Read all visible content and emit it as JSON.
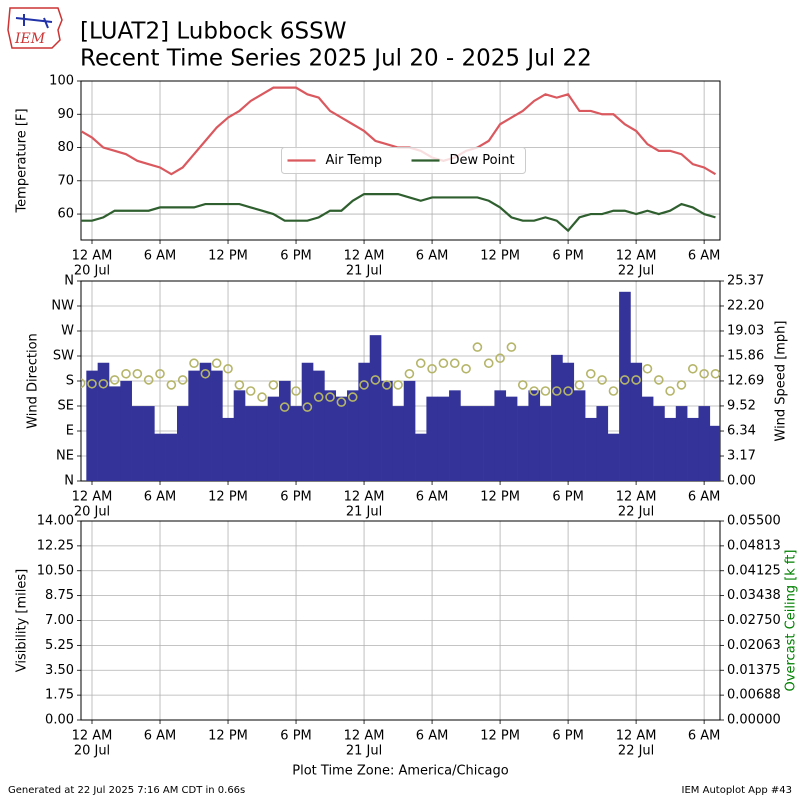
{
  "header": {
    "logo": "IEM",
    "title": "[LUAT2] Lubbock 6SSW",
    "subtitle": "Recent Time Series 2025 Jul 20 - 2025 Jul 22"
  },
  "footer": {
    "left": "Generated at 22 Jul 2025 7:16 AM CDT in 0.66s",
    "right": "IEM Autoplot App #43"
  },
  "chart_data": [
    {
      "type": "line",
      "ylabel": "Temperature [F]",
      "ylim": [
        52.2,
        100
      ],
      "yticks": [
        60,
        70,
        80,
        90,
        100
      ],
      "xlim": [
        -0.97,
        55.4
      ],
      "grid": true,
      "legend": "center",
      "xticks": [
        {
          "value": 0,
          "label": "12 AM"
        },
        {
          "value": 6,
          "label": "6 AM"
        },
        {
          "value": 12,
          "label": "12 PM"
        },
        {
          "value": 18,
          "label": "6 PM"
        },
        {
          "value": 24,
          "label": "12 AM"
        },
        {
          "value": 30,
          "label": "6 AM"
        },
        {
          "value": 36,
          "label": "12 PM"
        },
        {
          "value": 42,
          "label": "6 PM"
        },
        {
          "value": 48,
          "label": "12 AM"
        },
        {
          "value": 54,
          "label": "6 AM"
        }
      ],
      "xdates": [
        {
          "value": 0,
          "label": "20 Jul"
        },
        {
          "value": 24,
          "label": "21 Jul"
        },
        {
          "value": 48,
          "label": "22 Jul"
        }
      ],
      "series": [
        {
          "name": "Air Temp",
          "color": "#d9595f",
          "x": [
            -1,
            0,
            1,
            2,
            3,
            4,
            5,
            6,
            7,
            8,
            9,
            10,
            11,
            12,
            13,
            14,
            15,
            16,
            17,
            18,
            19,
            20,
            21,
            22,
            23,
            24,
            25,
            26,
            27,
            28,
            29,
            30,
            31,
            32,
            33,
            34,
            35,
            36,
            37,
            38,
            39,
            40,
            41,
            42,
            43,
            44,
            45,
            46,
            47,
            48,
            49,
            50,
            51,
            52,
            53,
            54,
            55
          ],
          "values": [
            85,
            83,
            80,
            79,
            78,
            76,
            75,
            74,
            72,
            74,
            78,
            82,
            86,
            89,
            91,
            94,
            96,
            98,
            98,
            98,
            96,
            95,
            91,
            89,
            87,
            85,
            82,
            81,
            80,
            80,
            79,
            77,
            76,
            77,
            79,
            80,
            82,
            87,
            89,
            91,
            94,
            96,
            95,
            96,
            91,
            91,
            90,
            90,
            87,
            85,
            81,
            79,
            79,
            78,
            75,
            74,
            72
          ]
        },
        {
          "name": "Dew Point",
          "color": "#2f5f2f",
          "x": [
            -1,
            0,
            1,
            2,
            3,
            4,
            5,
            6,
            7,
            8,
            9,
            10,
            11,
            12,
            13,
            14,
            15,
            16,
            17,
            18,
            19,
            20,
            21,
            22,
            23,
            24,
            25,
            26,
            27,
            28,
            29,
            30,
            31,
            32,
            33,
            34,
            35,
            36,
            37,
            38,
            39,
            40,
            41,
            42,
            43,
            44,
            45,
            46,
            47,
            48,
            49,
            50,
            51,
            52,
            53,
            54,
            55
          ],
          "values": [
            58,
            58,
            59,
            61,
            61,
            61,
            61,
            62,
            62,
            62,
            62,
            63,
            63,
            63,
            63,
            62,
            61,
            60,
            58,
            58,
            58,
            59,
            61,
            61,
            64,
            66,
            66,
            66,
            66,
            65,
            64,
            65,
            65,
            65,
            65,
            65,
            64,
            62,
            59,
            58,
            58,
            59,
            58,
            55,
            59,
            60,
            60,
            61,
            61,
            60,
            61,
            60,
            61,
            63,
            62,
            60,
            59
          ]
        }
      ]
    },
    {
      "type": "bar",
      "ylabel": "Wind Direction",
      "y2label": "Wind Speed [mph]",
      "ylim": [
        0,
        360
      ],
      "y2lim": [
        0,
        25.37
      ],
      "xlim": [
        -0.97,
        55.4
      ],
      "grid": true,
      "yticks": [
        {
          "value": 0,
          "label": "N"
        },
        {
          "value": 45,
          "label": "NE"
        },
        {
          "value": 90,
          "label": "E"
        },
        {
          "value": 135,
          "label": "SE"
        },
        {
          "value": 180,
          "label": "S"
        },
        {
          "value": 225,
          "label": "SW"
        },
        {
          "value": 270,
          "label": "W"
        },
        {
          "value": 315,
          "label": "NW"
        },
        {
          "value": 360,
          "label": "N"
        }
      ],
      "y2ticks": [
        {
          "value": 0,
          "label": "0.00"
        },
        3.17,
        6.34,
        9.52,
        12.69,
        15.86,
        19.03,
        {
          "value": 22.2,
          "label": "22.20"
        },
        25.37
      ],
      "xticks": [
        {
          "value": 0,
          "label": "12 AM"
        },
        {
          "value": 6,
          "label": "6 AM"
        },
        {
          "value": 12,
          "label": "12 PM"
        },
        {
          "value": 18,
          "label": "6 PM"
        },
        {
          "value": 24,
          "label": "12 AM"
        },
        {
          "value": 30,
          "label": "6 AM"
        },
        {
          "value": 36,
          "label": "12 PM"
        },
        {
          "value": 42,
          "label": "6 PM"
        },
        {
          "value": 48,
          "label": "12 AM"
        },
        {
          "value": 54,
          "label": "6 AM"
        }
      ],
      "xdates": [
        {
          "value": 0,
          "label": "20 Jul"
        },
        {
          "value": 24,
          "label": "21 Jul"
        },
        {
          "value": 48,
          "label": "22 Jul"
        }
      ],
      "series": [
        {
          "type": "bar",
          "axis": "y2",
          "color": "#333399",
          "x": [
            0,
            1,
            2,
            3,
            4,
            5,
            6,
            7,
            8,
            9,
            10,
            11,
            12,
            13,
            14,
            15,
            16,
            17,
            18,
            19,
            20,
            21,
            22,
            23,
            24,
            25,
            26,
            27,
            28,
            29,
            30,
            31,
            32,
            33,
            34,
            35,
            36,
            37,
            38,
            39,
            40,
            41,
            42,
            43,
            44,
            45,
            46,
            47,
            48,
            49,
            50,
            51,
            52,
            53,
            54,
            55
          ],
          "values": [
            14,
            15,
            12,
            12.7,
            9.5,
            9.5,
            6,
            6,
            9.5,
            14,
            15,
            14,
            8,
            11.5,
            9.5,
            9.5,
            10.7,
            12.7,
            9.5,
            15,
            14,
            11.5,
            10.7,
            11.5,
            15,
            18.5,
            12.7,
            9.5,
            12.7,
            6,
            10.7,
            10.7,
            11.5,
            9.5,
            9.5,
            9.5,
            11.5,
            10.7,
            9.5,
            11.5,
            9.5,
            16,
            15,
            11.5,
            8,
            9.5,
            6,
            24,
            15,
            10.7,
            9.5,
            8,
            9.5,
            8,
            9.5,
            7
          ]
        },
        {
          "type": "scatter",
          "color": "#b5b56a",
          "x": [
            -1,
            0,
            1,
            2,
            3,
            4,
            5,
            6,
            7,
            8,
            9,
            10,
            11,
            12,
            13,
            14,
            15,
            16,
            17,
            18,
            19,
            20,
            21,
            22,
            23,
            24,
            25,
            26,
            27,
            28,
            29,
            30,
            31,
            32,
            33,
            34,
            35,
            36,
            37,
            38,
            39,
            40,
            41,
            42,
            43,
            44,
            45,
            46,
            47,
            48,
            49,
            50,
            51,
            52,
            53,
            54,
            55
          ],
          "values": [
            176,
            175,
            175,
            182,
            193,
            193,
            182,
            193,
            173,
            182,
            212,
            193,
            212,
            202,
            173,
            162,
            151,
            173,
            133,
            162,
            133,
            151,
            151,
            142,
            151,
            173,
            182,
            173,
            173,
            193,
            212,
            202,
            212,
            212,
            202,
            241,
            212,
            221,
            241,
            173,
            162,
            162,
            162,
            162,
            173,
            193,
            182,
            162,
            182,
            182,
            202,
            182,
            162,
            173,
            202,
            193,
            193
          ]
        }
      ]
    },
    {
      "type": "line",
      "ylabel": "Visibility [miles]",
      "y2label": "Overcast Ceiling [k ft]",
      "y2color": "#008000",
      "xlabel": "Plot Time Zone: America/Chicago",
      "ylim": [
        0,
        14
      ],
      "y2lim": [
        0,
        0.055
      ],
      "xlim": [
        -0.97,
        55.4
      ],
      "grid": true,
      "yticks": [
        {
          "value": 0,
          "label": "0.00"
        },
        1.75,
        {
          "value": 3.5,
          "label": "3.50"
        },
        5.25,
        {
          "value": 7,
          "label": "7.00"
        },
        8.75,
        {
          "value": 10.5,
          "label": "10.50"
        },
        12.25,
        {
          "value": 14,
          "label": "14.00"
        }
      ],
      "y2ticks": [
        {
          "value": 0,
          "label": "0.00000"
        },
        {
          "value": 0.006875,
          "label": "0.00688"
        },
        0.01375,
        {
          "value": 0.020625,
          "label": "0.02063"
        },
        {
          "value": 0.0275,
          "label": "0.02750"
        },
        {
          "value": 0.034375,
          "label": "0.03438"
        },
        0.04125,
        {
          "value": 0.048125,
          "label": "0.04813"
        },
        {
          "value": 0.055,
          "label": "0.05500"
        }
      ],
      "xticks": [
        {
          "value": 0,
          "label": "12 AM"
        },
        {
          "value": 6,
          "label": "6 AM"
        },
        {
          "value": 12,
          "label": "12 PM"
        },
        {
          "value": 18,
          "label": "6 PM"
        },
        {
          "value": 24,
          "label": "12 AM"
        },
        {
          "value": 30,
          "label": "6 AM"
        },
        {
          "value": 36,
          "label": "12 PM"
        },
        {
          "value": 42,
          "label": "6 PM"
        },
        {
          "value": 48,
          "label": "12 AM"
        },
        {
          "value": 54,
          "label": "6 AM"
        }
      ],
      "xdates": [
        {
          "value": 0,
          "label": "20 Jul"
        },
        {
          "value": 24,
          "label": "21 Jul"
        },
        {
          "value": 48,
          "label": "22 Jul"
        }
      ],
      "series": []
    }
  ]
}
